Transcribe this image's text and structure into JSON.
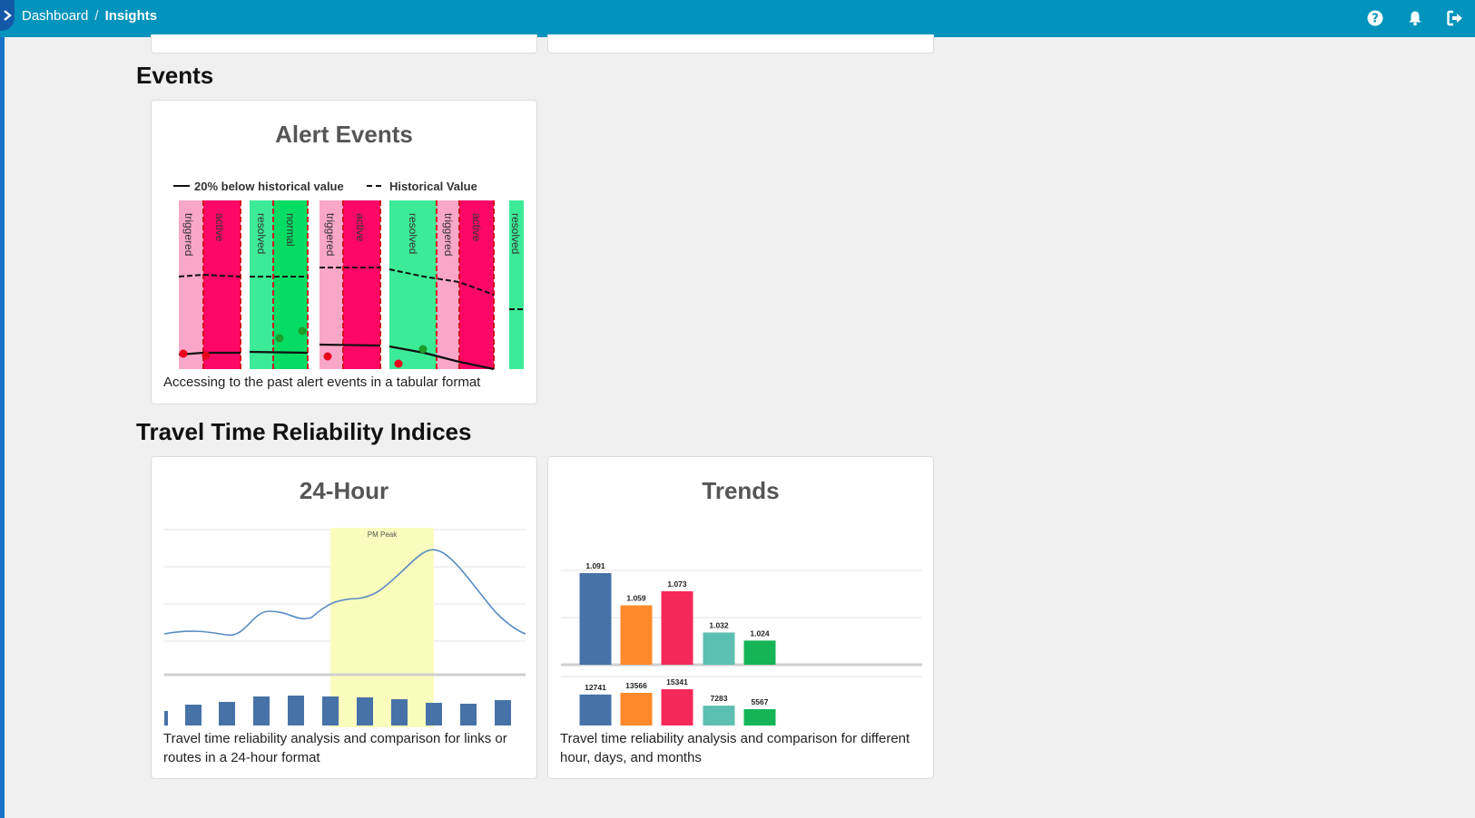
{
  "header": {
    "breadcrumb": [
      "Dashboard",
      "Insights"
    ],
    "separator": "/",
    "icons": [
      "help-icon",
      "bell-icon",
      "logout-icon"
    ]
  },
  "sections": {
    "events": "Events",
    "ttri": "Travel Time Reliability Indices"
  },
  "cards": {
    "alert_events": {
      "title": "Alert Events",
      "description": "Accessing to the past alert events in a tabular format",
      "legend": [
        "20% below historical value",
        "Historical Value"
      ],
      "bands": [
        "triggered",
        "active",
        "resolved",
        "normal",
        "triggered",
        "active",
        "resolved",
        "triggered",
        "active",
        "resolved"
      ]
    },
    "hour24": {
      "title": "24-Hour",
      "description": "Travel time reliability analysis and comparison for links or routes in a 24-hour format",
      "peak_label": "PM Peak"
    },
    "trends": {
      "title": "Trends",
      "description": "Travel time reliability analysis and comparison for different hour, days, and months"
    }
  },
  "chart_data": [
    {
      "type": "bar",
      "title": "",
      "series": [
        {
          "values": [
            1.091,
            1.059,
            1.073,
            1.032,
            1.024
          ],
          "labels": [
            "1.091",
            "1.059",
            "1.073",
            "1.032",
            "1.024"
          ]
        },
        {
          "values": [
            12741,
            13566,
            15341,
            7283,
            5567
          ],
          "labels": [
            "12741",
            "13566",
            "15341",
            "7283",
            "5567"
          ]
        }
      ],
      "colors": [
        "#4672a8",
        "#ff8a2b",
        "#f5285a",
        "#5cbfb1",
        "#15b457"
      ]
    }
  ]
}
